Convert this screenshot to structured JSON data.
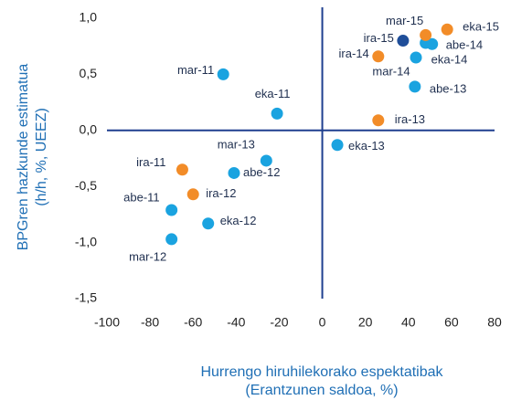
{
  "chart_data": {
    "type": "scatter",
    "x_label": [
      "Hurrengo hiruhilekorako espektatibak",
      "(Erantzunen saldoa, %)"
    ],
    "y_label": [
      "BPGren hazkunde estimatua",
      "(h/h, %, UEEZ)"
    ],
    "labels": [
      "mar-11",
      "eka-11",
      "mar-13",
      "abe-12",
      "ira-11",
      "ira-12",
      "abe-11",
      "eka-12",
      "mar-12",
      "eka-13",
      "ira-13",
      "abe-13",
      "ira-14",
      "mar-14",
      "eka-14",
      "abe-14",
      "ira-15",
      "mar-15",
      "eka-15"
    ],
    "x": [
      -46,
      -21,
      -26,
      -41,
      -65,
      -60,
      -70,
      -53,
      -70,
      7,
      26,
      43,
      26,
      43.5,
      48,
      51,
      37.5,
      48,
      58
    ],
    "values": [
      0.5,
      0.15,
      -0.27,
      -0.38,
      -0.35,
      -0.57,
      -0.71,
      -0.83,
      -0.97,
      -0.13,
      0.09,
      0.39,
      0.66,
      0.65,
      0.78,
      0.77,
      0.8,
      0.85,
      0.9
    ],
    "colors": [
      "#1aa3e0",
      "#1aa3e0",
      "#1aa3e0",
      "#1aa3e0",
      "#f28c28",
      "#f28c28",
      "#1aa3e0",
      "#1aa3e0",
      "#1aa3e0",
      "#1aa3e0",
      "#f28c28",
      "#1aa3e0",
      "#f28c28",
      "#1aa3e0",
      "#1aa3e0",
      "#1aa3e0",
      "#1f4e99",
      "#f28c28",
      "#f28c28"
    ],
    "xlim": [
      -100,
      80
    ],
    "xticks": [
      -100,
      -80,
      -60,
      -40,
      -20,
      0,
      20,
      40,
      60,
      80
    ],
    "ylim": [
      -1.5,
      1.0
    ],
    "yticks": [
      {
        "value": -1.5,
        "label": "-1,5"
      },
      {
        "value": -1.0,
        "label": "-1,0"
      },
      {
        "value": -0.5,
        "label": "-0,5"
      },
      {
        "value": 0.0,
        "label": "0,0"
      },
      {
        "value": 0.5,
        "label": "0,5"
      },
      {
        "value": 1.0,
        "label": "1,0"
      }
    ]
  }
}
